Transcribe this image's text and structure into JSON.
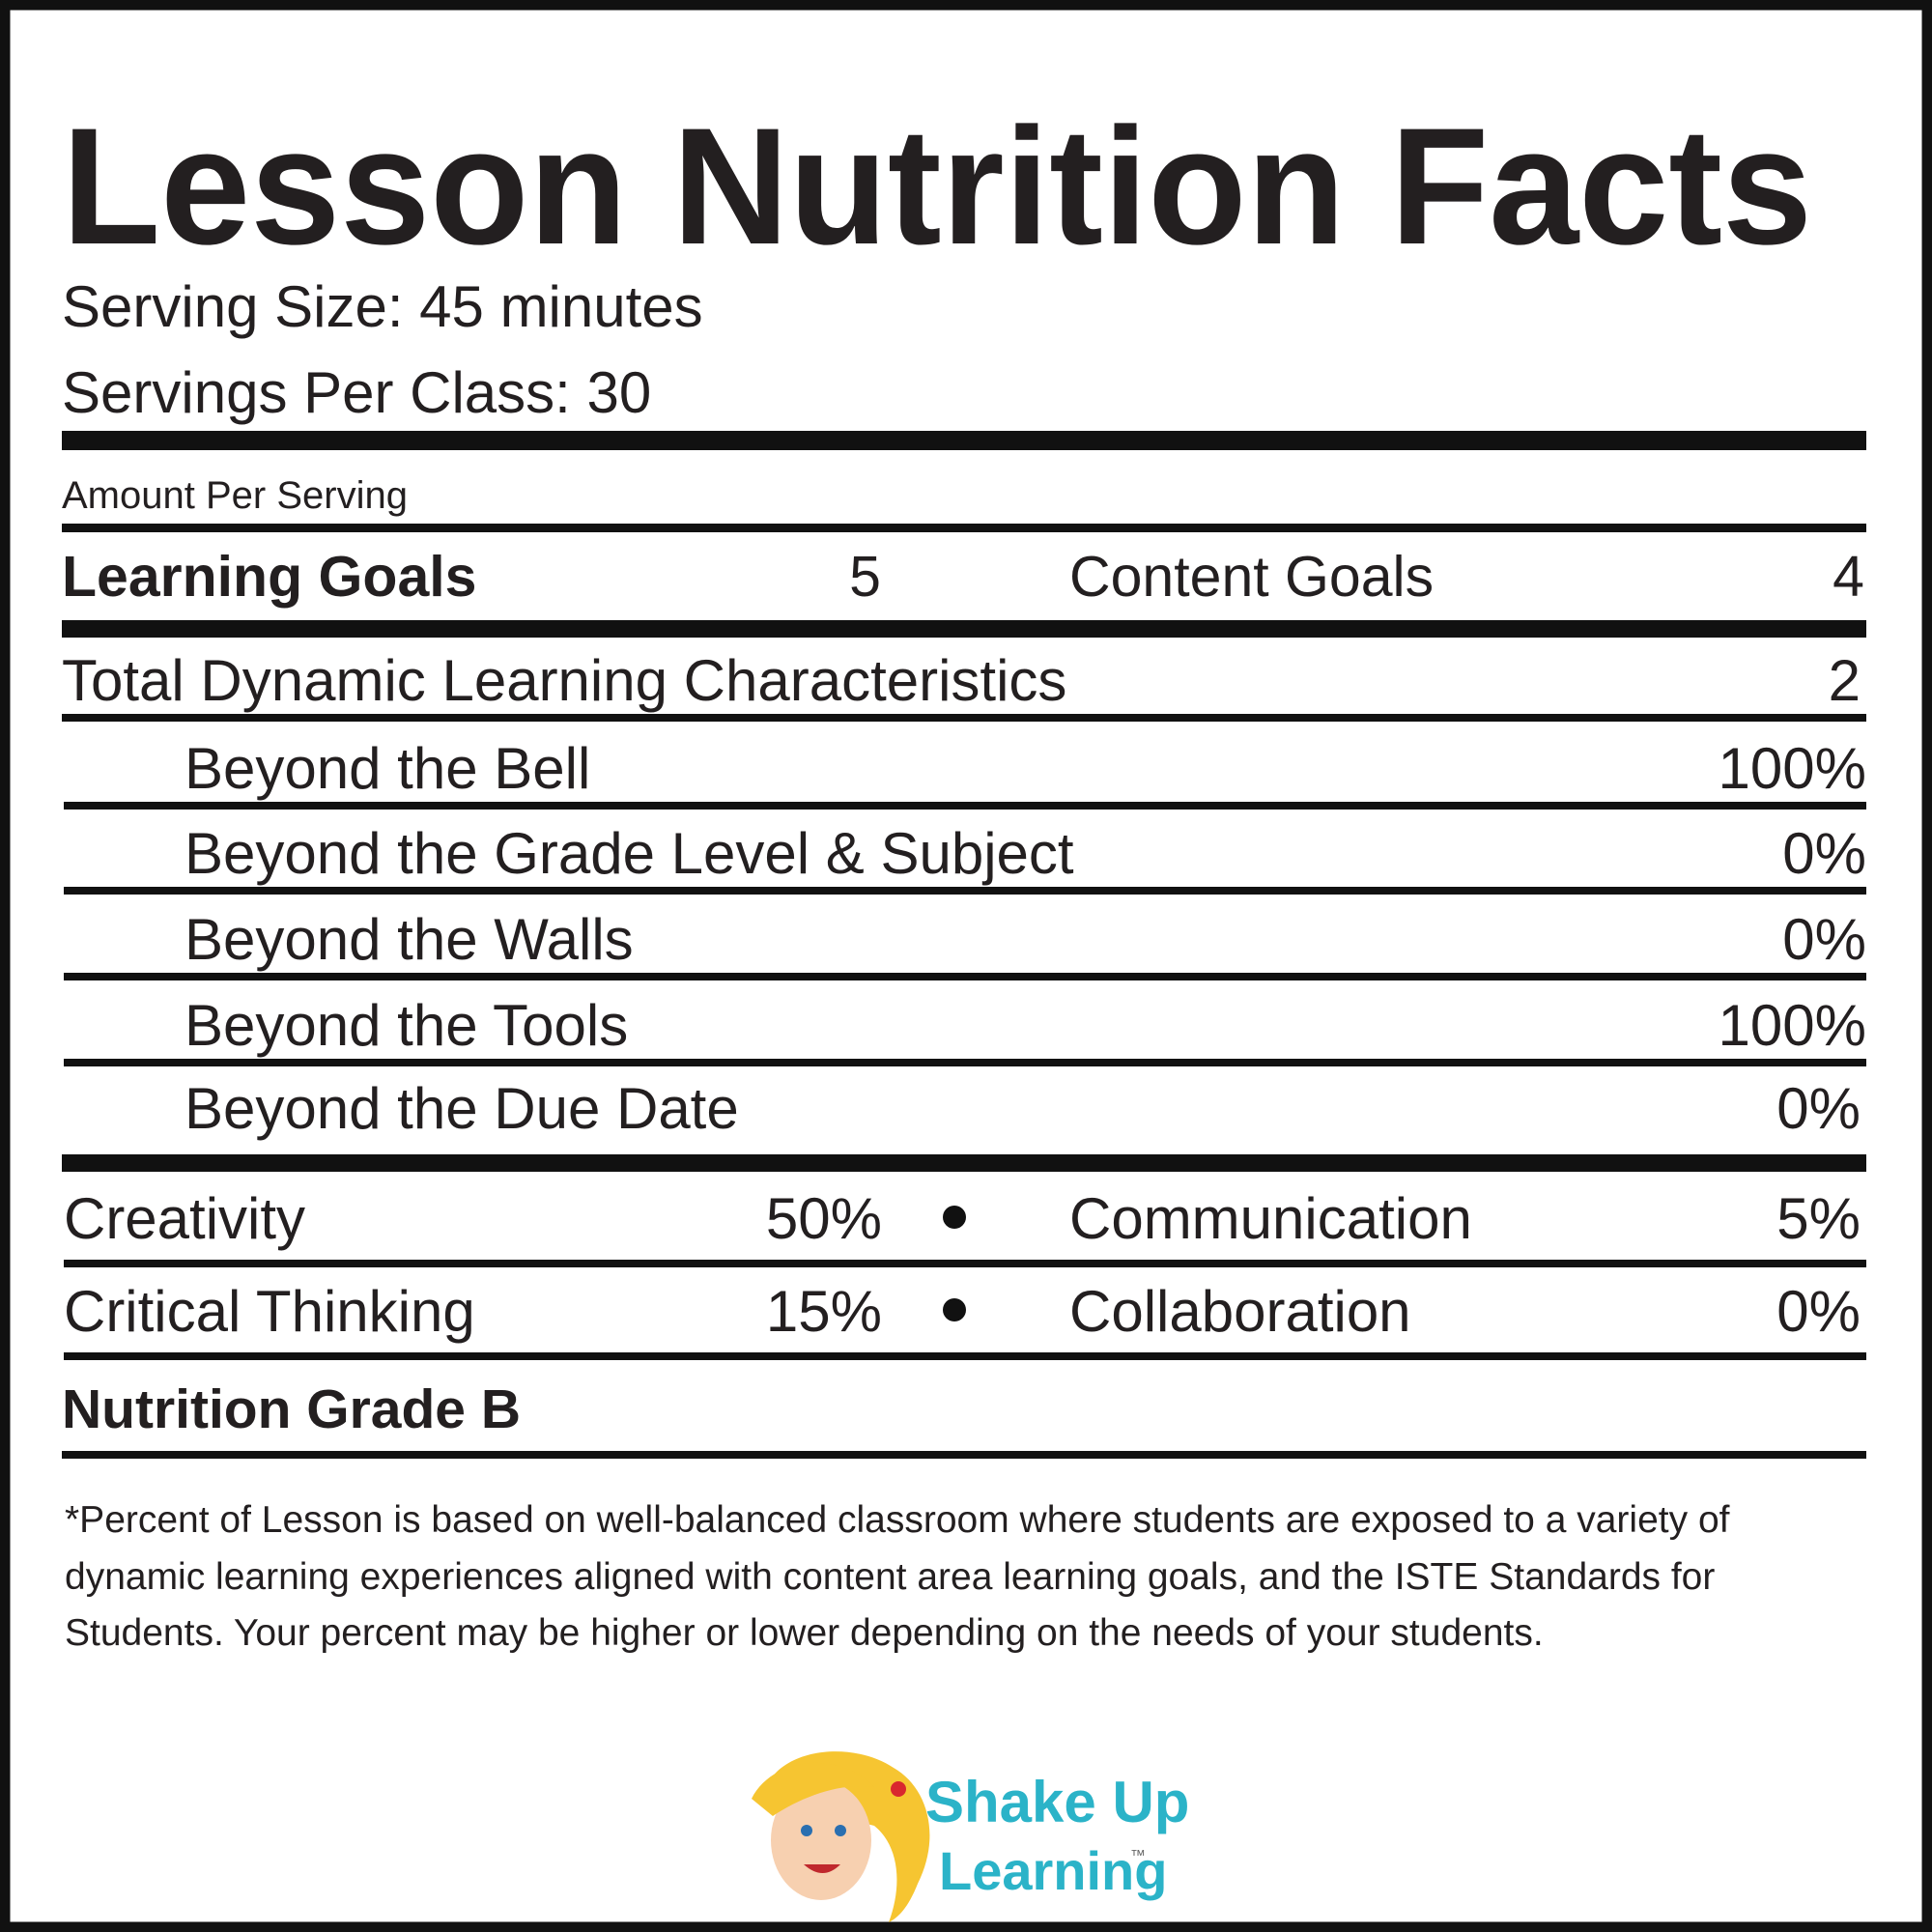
{
  "title": "Lesson Nutrition Facts",
  "serving_size": "Serving Size: 45 minutes",
  "servings_per_class": "Servings Per Class: 30",
  "amount_per_serving": "Amount Per Serving",
  "goals": [
    {
      "label": "Learning Goals",
      "value": "5"
    },
    {
      "label": "Content Goals",
      "value": "4"
    }
  ],
  "total": {
    "label": "Total Dynamic Learning Characteristics",
    "value": "2"
  },
  "characteristics": [
    {
      "label": "Beyond the Bell",
      "value": "100%"
    },
    {
      "label": "Beyond the Grade Level & Subject",
      "value": "0%"
    },
    {
      "label": "Beyond the Walls",
      "value": "0%"
    },
    {
      "label": "Beyond the Tools",
      "value": "100%"
    },
    {
      "label": "Beyond the Due Date",
      "value": "0%"
    }
  ],
  "skills": [
    [
      {
        "label": "Creativity",
        "value": "50%"
      },
      {
        "label": "Communication",
        "value": "5%"
      }
    ],
    [
      {
        "label": "Critical Thinking",
        "value": "15%"
      },
      {
        "label": "Collaboration",
        "value": "0%"
      }
    ]
  ],
  "grade": "Nutrition Grade B",
  "footnote": "*Percent of Lesson is based on well-balanced classroom where students are exposed to a variety of dynamic learning experiences aligned with content area learning goals, and the ISTE Standards for Students. Your percent may be higher or lower depending on the needs of your students.",
  "logo": {
    "line1": "Shake Up",
    "line2": "Learning",
    "mark": "™"
  }
}
